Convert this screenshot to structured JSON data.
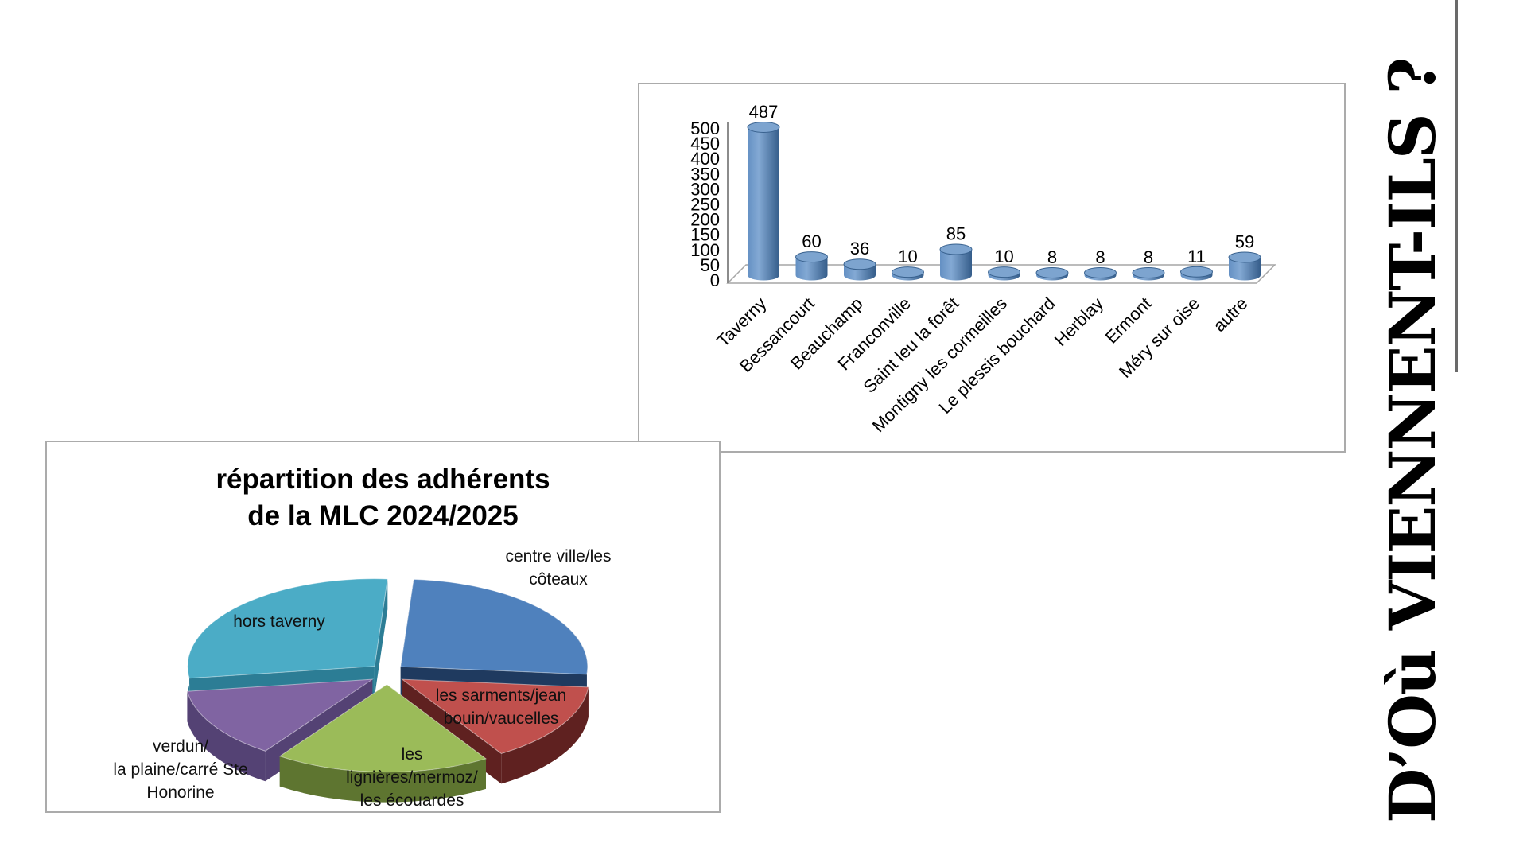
{
  "page": {
    "background": "#ffffff",
    "vertical_title": "D’Où VIENNENT-ILS ?",
    "accent_line_color": "#6a6a6a"
  },
  "chart_data": [
    {
      "type": "bar",
      "style": "3d-cylinder",
      "title": "",
      "xlabel": "",
      "ylabel": "",
      "categories": [
        "Taverny",
        "Bessancourt",
        "Beauchamp",
        "Franconville",
        "Saint leu la forêt",
        "Montigny les cormeilles",
        "Le plessis bouchard",
        "Herblay",
        "Ermont",
        "Méry sur oise",
        "autre"
      ],
      "values": [
        487,
        60,
        36,
        10,
        85,
        10,
        8,
        8,
        8,
        11,
        59
      ],
      "ylim": [
        0,
        500
      ],
      "ytick_step": 50,
      "grid": false,
      "legend": "none",
      "bar_color": "#4F81BD",
      "bar_color_dark": "#355d8a",
      "bar_top_color": "#7da4cf"
    },
    {
      "type": "pie",
      "style": "3d-exploded",
      "title": "répartition des adhérents\nde la MLC 2024/2025",
      "legend": "none",
      "fractions_estimated": true,
      "slices": [
        {
          "label": "centre ville/les côteaux",
          "label_display": "centre ville/les\ncôteaux",
          "fraction": 0.253,
          "color": "#4F81BD",
          "side": "#1F3A5F"
        },
        {
          "label": "les sarments/jean bouin/vaucelles",
          "label_display": "les sarments/jean\nbouin/vaucelles",
          "fraction": 0.147,
          "color": "#C0504D",
          "side": "#5F2120"
        },
        {
          "label": "les lignières/mermoz/les écouardes",
          "label_display": "les\nlignières/mermoz/\nles écouardes",
          "fraction": 0.186,
          "color": "#9BBB59",
          "side": "#5E7530"
        },
        {
          "label": "verdun/la plaine/carré Ste Honorine",
          "label_display": "verdun/\nla plaine/carré Ste\nHonorine",
          "fraction": 0.131,
          "color": "#8064A2",
          "side": "#544274"
        },
        {
          "label": "hors taverny",
          "label_display": "hors taverny",
          "fraction": 0.283,
          "color": "#4BACC6",
          "side": "#2C7D95"
        }
      ]
    }
  ]
}
